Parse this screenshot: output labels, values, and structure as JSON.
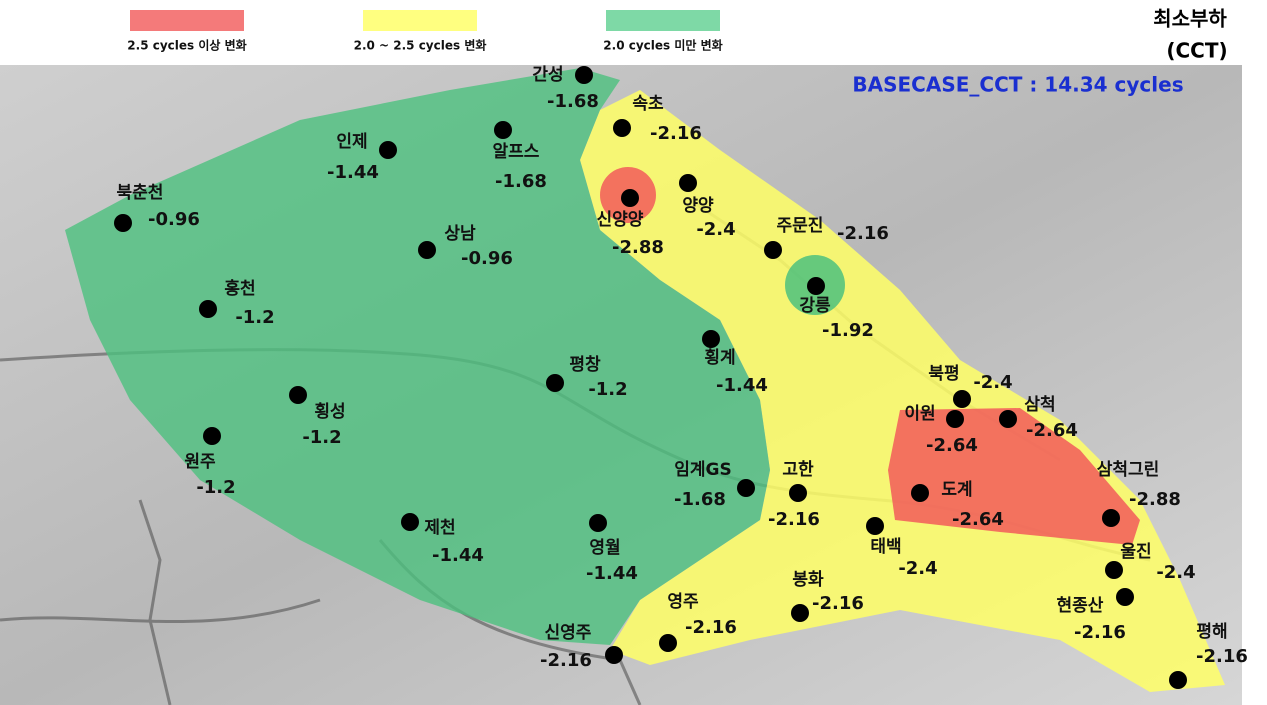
{
  "legend": [
    {
      "label": "2.5 cycles 이상 변화",
      "color": "#f47a7a"
    },
    {
      "label": "2.0 ~ 2.5 cycles 변화",
      "color": "#ffff80"
    },
    {
      "label": "2.0 cycles 미만 변화",
      "color": "#7ed9a6"
    }
  ],
  "title": {
    "line1": "최소부하",
    "line2": "(CCT)"
  },
  "basecase": "BASECASE_CCT : 14.34 cycles",
  "nodes": [
    {
      "name": "간성",
      "value": -1.68
    },
    {
      "name": "속초",
      "value": -2.16
    },
    {
      "name": "인제",
      "value": -1.44
    },
    {
      "name": "알프스",
      "value": -1.68
    },
    {
      "name": "북춘천",
      "value": -0.96
    },
    {
      "name": "신양양",
      "value": -2.88
    },
    {
      "name": "양양",
      "value": -2.4
    },
    {
      "name": "주문진",
      "value": -2.16
    },
    {
      "name": "상남",
      "value": -0.96
    },
    {
      "name": "홍천",
      "value": -1.2
    },
    {
      "name": "강릉",
      "value": -1.92
    },
    {
      "name": "횡계",
      "value": -1.44
    },
    {
      "name": "평창",
      "value": -1.2
    },
    {
      "name": "횡성",
      "value": -1.2
    },
    {
      "name": "북평",
      "value": -2.4
    },
    {
      "name": "이원",
      "value": -2.64
    },
    {
      "name": "삼척",
      "value": -2.64
    },
    {
      "name": "원주",
      "value": -1.2
    },
    {
      "name": "임계GS",
      "value": -1.68
    },
    {
      "name": "고한",
      "value": -2.16
    },
    {
      "name": "도계",
      "value": -2.64
    },
    {
      "name": "삼척그린",
      "value": -2.88
    },
    {
      "name": "태백",
      "value": -2.4
    },
    {
      "name": "제천",
      "value": -1.44
    },
    {
      "name": "영월",
      "value": -1.44
    },
    {
      "name": "울진",
      "value": -2.4
    },
    {
      "name": "봉화",
      "value": -2.16
    },
    {
      "name": "현종산",
      "value": -2.16
    },
    {
      "name": "영주",
      "value": -2.16
    },
    {
      "name": "신영주",
      "value": -2.16
    },
    {
      "name": "평해",
      "value": -2.16
    }
  ]
}
